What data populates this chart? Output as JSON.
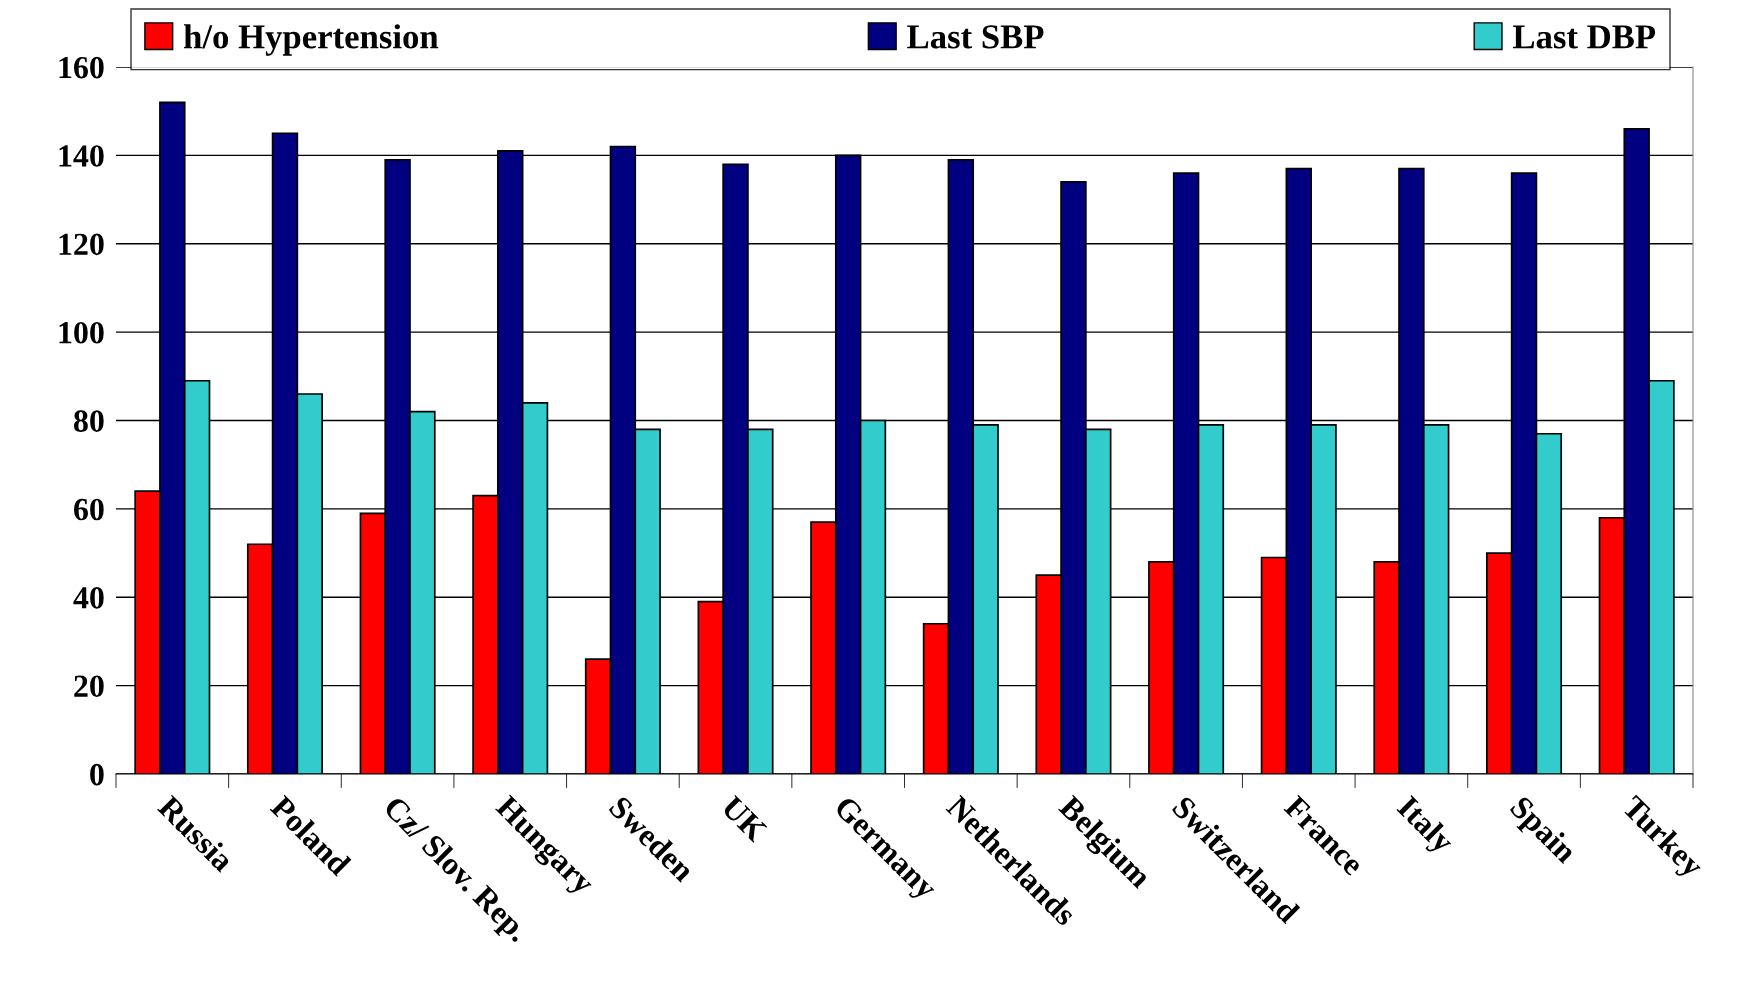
{
  "chart_data": {
    "type": "bar",
    "categories": [
      "Russia",
      "Poland",
      "Cz/ Slov. Rep.",
      "Hungary",
      "Sweden",
      "UK",
      "Germany",
      "Netherlands",
      "Belgium",
      "Switzerland",
      "France",
      "Italy",
      "Spain",
      "Turkey"
    ],
    "series": [
      {
        "name": "h/o Hypertension",
        "color": "#ff0000",
        "values": [
          64,
          52,
          59,
          63,
          26,
          39,
          57,
          34,
          45,
          48,
          49,
          48,
          50,
          58
        ]
      },
      {
        "name": "Last SBP",
        "color": "#000080",
        "values": [
          152,
          145,
          139,
          141,
          142,
          138,
          140,
          139,
          134,
          136,
          137,
          137,
          136,
          146
        ]
      },
      {
        "name": "Last DBP",
        "color": "#33cccc",
        "values": [
          89,
          86,
          82,
          84,
          78,
          78,
          80,
          79,
          78,
          79,
          79,
          79,
          77,
          89
        ]
      }
    ],
    "ylim": [
      0,
      160
    ],
    "yticks": [
      0,
      20,
      40,
      60,
      80,
      100,
      120,
      140,
      160
    ],
    "grid": "y",
    "legend": "top"
  }
}
